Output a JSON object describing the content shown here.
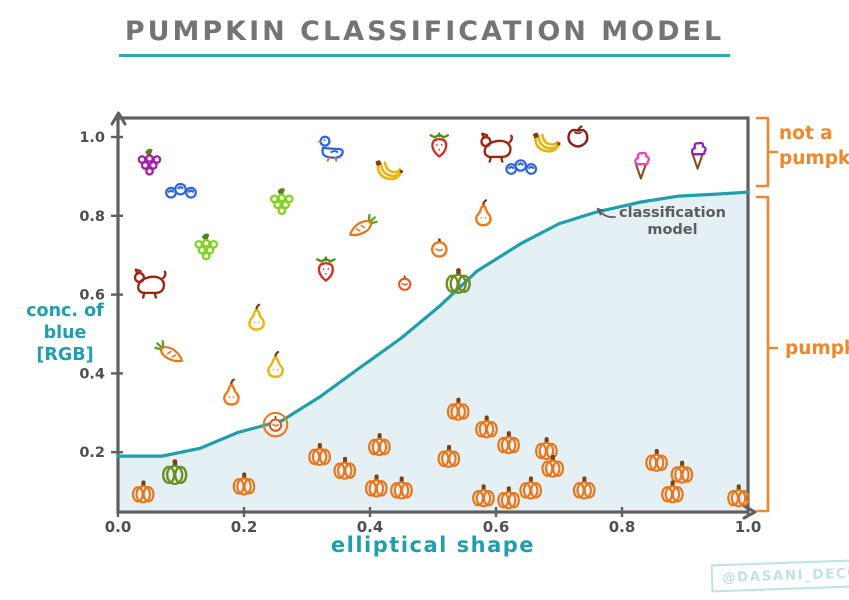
{
  "title": "PUMPKIN CLASSIFICATION MODEL",
  "watermark": "@DASANI_DECODED",
  "colors": {
    "teal": "#1f9fae",
    "area_fill": "#e4f0f3",
    "orange_label": "#f0882b",
    "axis_gray": "#5f5f5f",
    "title_gray": "#747474",
    "tick_gray": "#4f4f4f",
    "annotation_gray": "#5c5c5c",
    "watermark_teal": "#bfe2e6"
  },
  "chart_data": {
    "type": "scatter",
    "title": "PUMPKIN CLASSIFICATION MODEL",
    "xlabel": "elliptical shape",
    "ylabel_lines": [
      "conc. of",
      "blue",
      "[RGB]"
    ],
    "x_ticks": [
      "0.0",
      "0.2",
      "0.4",
      "0.6",
      "0.8",
      "1.0"
    ],
    "y_ticks": [
      "1.0",
      "0.8",
      "0.6",
      "0.4",
      "0.2"
    ],
    "xlim": [
      0.0,
      1.0
    ],
    "ylim": [
      0.0,
      1.05
    ],
    "grid": false,
    "annotation": {
      "lines": [
        "classification",
        "model"
      ],
      "points_to": "curve"
    },
    "brackets": [
      {
        "label_lines": [
          "not a",
          "pumpkin"
        ],
        "y_range": [
          0.855,
          1.05
        ],
        "side": "right"
      },
      {
        "label_lines": [
          "pumpkin"
        ],
        "y_range": [
          0.0,
          0.85
        ],
        "side": "right"
      }
    ],
    "curve": {
      "name": "classification model",
      "points": [
        [
          0.0,
          0.19
        ],
        [
          0.07,
          0.19
        ],
        [
          0.13,
          0.21
        ],
        [
          0.19,
          0.25
        ],
        [
          0.26,
          0.28
        ],
        [
          0.32,
          0.34
        ],
        [
          0.38,
          0.41
        ],
        [
          0.45,
          0.49
        ],
        [
          0.51,
          0.57
        ],
        [
          0.57,
          0.66
        ],
        [
          0.64,
          0.73
        ],
        [
          0.7,
          0.78
        ],
        [
          0.76,
          0.81
        ],
        [
          0.83,
          0.835
        ],
        [
          0.89,
          0.85
        ],
        [
          0.95,
          0.855
        ],
        [
          1.0,
          0.86
        ]
      ]
    },
    "points": [
      {
        "item": "grapes",
        "icon": "grapes-purple",
        "x": 0.05,
        "y": 0.94
      },
      {
        "item": "blueberries",
        "icon": "blueberries",
        "x": 0.1,
        "y": 0.865
      },
      {
        "item": "duck",
        "icon": "duck",
        "x": 0.34,
        "y": 0.975
      },
      {
        "item": "grapes",
        "icon": "grapes-green",
        "x": 0.26,
        "y": 0.84
      },
      {
        "item": "grapes",
        "icon": "grapes-green",
        "x": 0.14,
        "y": 0.725
      },
      {
        "item": "dog",
        "icon": "dog",
        "x": 0.05,
        "y": 0.63
      },
      {
        "item": "strawberry",
        "icon": "strawberry",
        "x": 0.33,
        "y": 0.665
      },
      {
        "item": "banana",
        "icon": "banana",
        "x": 0.43,
        "y": 0.915
      },
      {
        "item": "strawberry",
        "icon": "strawberry",
        "x": 0.51,
        "y": 0.98
      },
      {
        "item": "dog",
        "icon": "dog",
        "x": 0.6,
        "y": 0.975
      },
      {
        "item": "blueberries",
        "icon": "blueberries",
        "x": 0.64,
        "y": 0.925
      },
      {
        "item": "banana",
        "icon": "banana",
        "x": 0.68,
        "y": 0.985
      },
      {
        "item": "apple",
        "icon": "apple",
        "x": 0.73,
        "y": 1.0
      },
      {
        "item": "ice-cream",
        "icon": "icecream-pink",
        "x": 0.83,
        "y": 0.93
      },
      {
        "item": "ice-cream",
        "icon": "icecream-purple",
        "x": 0.92,
        "y": 0.955
      },
      {
        "item": "carrot",
        "icon": "carrot",
        "x": 0.39,
        "y": 0.775
      },
      {
        "item": "pear",
        "icon": "pear-orange",
        "x": 0.58,
        "y": 0.805
      },
      {
        "item": "tangerine",
        "icon": "tangerine",
        "x": 0.51,
        "y": 0.72
      },
      {
        "item": "tomato",
        "icon": "tomato",
        "x": 0.455,
        "y": 0.63
      },
      {
        "item": "pumpkin",
        "icon": "pumpkin-green",
        "x": 0.54,
        "y": 0.635
      },
      {
        "item": "pear",
        "icon": "pear-yellow",
        "x": 0.22,
        "y": 0.54
      },
      {
        "item": "carrot",
        "icon": "carrot",
        "x": 0.08,
        "y": 0.455,
        "flip": true
      },
      {
        "item": "pear",
        "icon": "pear-yellow",
        "x": 0.25,
        "y": 0.42
      },
      {
        "item": "pear",
        "icon": "pear-orange",
        "x": 0.18,
        "y": 0.35
      },
      {
        "item": "tomato",
        "icon": "tomato-circled",
        "x": 0.25,
        "y": 0.27
      },
      {
        "item": "pumpkin",
        "icon": "pumpkin-green",
        "x": 0.09,
        "y": 0.15
      },
      {
        "item": "pumpkin",
        "icon": "pumpkin-orange",
        "x": 0.04,
        "y": 0.1
      },
      {
        "item": "pumpkin",
        "icon": "pumpkin-orange",
        "x": 0.2,
        "y": 0.12
      },
      {
        "item": "pumpkin",
        "icon": "pumpkin-orange",
        "x": 0.32,
        "y": 0.195
      },
      {
        "item": "pumpkin",
        "icon": "pumpkin-orange",
        "x": 0.36,
        "y": 0.16
      },
      {
        "item": "pumpkin",
        "icon": "pumpkin-orange",
        "x": 0.54,
        "y": 0.31
      },
      {
        "item": "pumpkin",
        "icon": "pumpkin-orange",
        "x": 0.585,
        "y": 0.265
      },
      {
        "item": "pumpkin",
        "icon": "pumpkin-orange",
        "x": 0.415,
        "y": 0.22
      },
      {
        "item": "pumpkin",
        "icon": "pumpkin-orange",
        "x": 0.62,
        "y": 0.225
      },
      {
        "item": "pumpkin",
        "icon": "pumpkin-orange",
        "x": 0.68,
        "y": 0.21
      },
      {
        "item": "pumpkin",
        "icon": "pumpkin-orange",
        "x": 0.525,
        "y": 0.19
      },
      {
        "item": "pumpkin",
        "icon": "pumpkin-orange",
        "x": 0.69,
        "y": 0.165
      },
      {
        "item": "pumpkin",
        "icon": "pumpkin-orange",
        "x": 0.41,
        "y": 0.115
      },
      {
        "item": "pumpkin",
        "icon": "pumpkin-orange",
        "x": 0.45,
        "y": 0.11
      },
      {
        "item": "pumpkin",
        "icon": "pumpkin-orange",
        "x": 0.58,
        "y": 0.09
      },
      {
        "item": "pumpkin",
        "icon": "pumpkin-orange",
        "x": 0.62,
        "y": 0.085
      },
      {
        "item": "pumpkin",
        "icon": "pumpkin-orange",
        "x": 0.655,
        "y": 0.11
      },
      {
        "item": "pumpkin",
        "icon": "pumpkin-orange",
        "x": 0.74,
        "y": 0.11
      },
      {
        "item": "pumpkin",
        "icon": "pumpkin-orange",
        "x": 0.855,
        "y": 0.18
      },
      {
        "item": "pumpkin",
        "icon": "pumpkin-orange",
        "x": 0.895,
        "y": 0.15
      },
      {
        "item": "pumpkin",
        "icon": "pumpkin-orange",
        "x": 0.88,
        "y": 0.1
      },
      {
        "item": "pumpkin",
        "icon": "pumpkin-orange",
        "x": 0.985,
        "y": 0.09
      }
    ]
  }
}
